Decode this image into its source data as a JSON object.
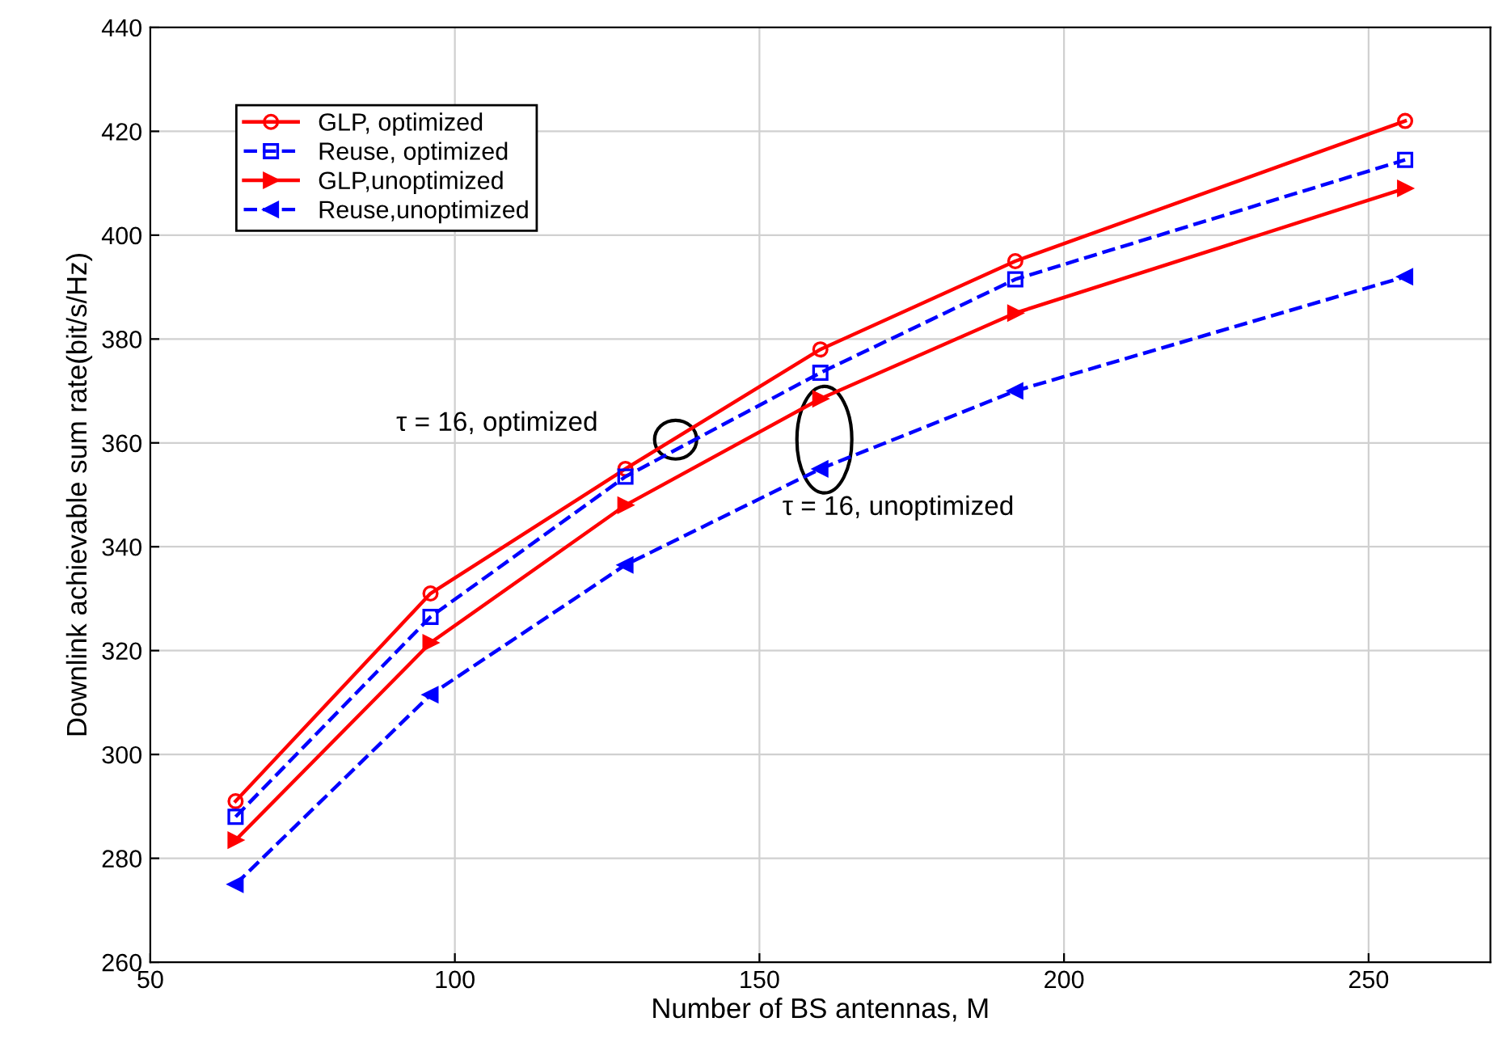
{
  "chart_data": {
    "type": "line",
    "xlabel": "Number of BS antennas, M",
    "ylabel": "Downlink achievable sum rate(bit/s/Hz)",
    "x": [
      64,
      96,
      128,
      160,
      192,
      256
    ],
    "series": [
      {
        "name": "GLP, optimized",
        "color": "#ff0000",
        "marker": "circle",
        "line_style": "solid",
        "values": [
          291,
          331,
          355,
          378,
          395,
          422
        ]
      },
      {
        "name": "Reuse, optimized",
        "color": "#0000ff",
        "marker": "square",
        "line_style": "dashed",
        "values": [
          288,
          326.5,
          353.5,
          373.5,
          391.5,
          414.5
        ]
      },
      {
        "name": "GLP,unoptimized",
        "color": "#ff0000",
        "marker": "triangle_right",
        "line_style": "solid",
        "values": [
          283.5,
          321.5,
          348,
          368.5,
          385,
          409
        ]
      },
      {
        "name": "Reuse,unoptimized",
        "color": "#0000ff",
        "marker": "triangle_left",
        "line_style": "dashed",
        "values": [
          275,
          311.5,
          336.5,
          355,
          370,
          392
        ]
      }
    ],
    "annotations": [
      "τ = 16, optimized",
      "τ = 16, unoptimized"
    ],
    "xlim": [
      50,
      270
    ],
    "xticks": [
      50,
      100,
      150,
      200,
      250
    ],
    "ylim": [
      260,
      440
    ],
    "yticks": [
      260,
      280,
      300,
      320,
      340,
      360,
      380,
      400,
      420,
      440
    ],
    "grid": true,
    "legend": "top left"
  }
}
